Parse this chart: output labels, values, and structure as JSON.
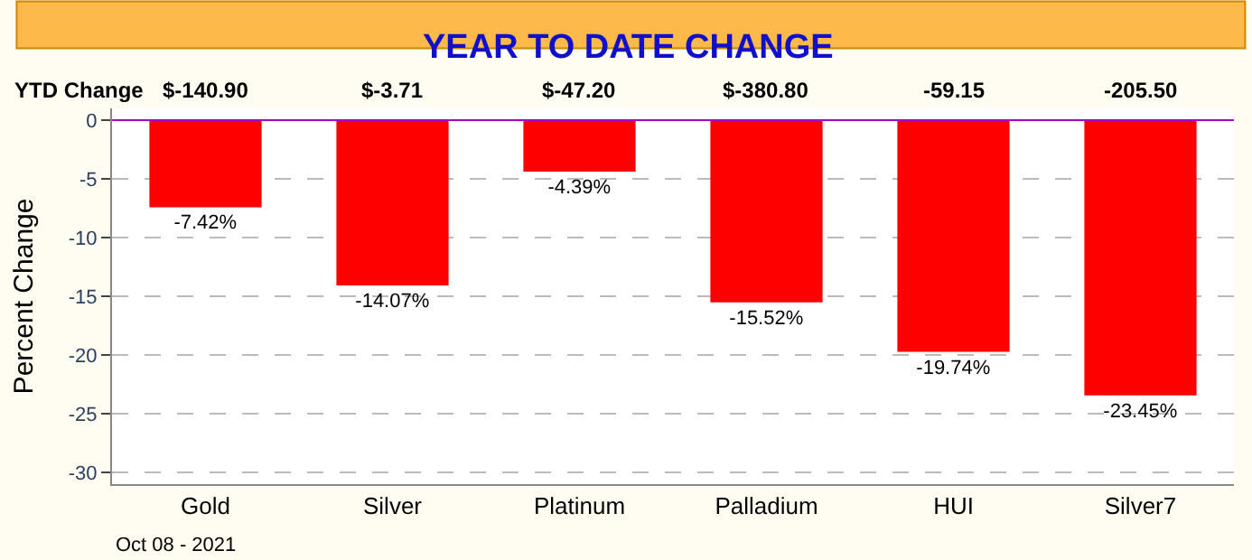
{
  "chart_data": {
    "type": "bar",
    "title": "YEAR TO DATE CHANGE",
    "ylabel": "Percent Change",
    "categories": [
      "Gold",
      "Silver",
      "Platinum",
      "Palladium",
      "HUI",
      "Silver7"
    ],
    "values": [
      -7.42,
      -14.07,
      -4.39,
      -15.52,
      -19.74,
      -23.45
    ],
    "value_labels": [
      "-7.42%",
      "-14.07%",
      "-4.39%",
      "-15.52%",
      "-19.74%",
      "-23.45%"
    ],
    "color": "#ff0000",
    "ylim": [
      -31,
      1
    ],
    "yticks": [
      0,
      -5,
      -10,
      -15,
      -20,
      -25,
      -30
    ],
    "grid": "y",
    "ref_lines": [
      {
        "axis": "y",
        "value": 0,
        "color": "#aa00cc"
      }
    ],
    "annotations": [
      "YTD Change",
      "$-140.90",
      "$-3.71",
      "$-47.20",
      "$-380.80",
      "-59.15",
      "-205.50",
      "Oct 08 - 2021"
    ]
  }
}
